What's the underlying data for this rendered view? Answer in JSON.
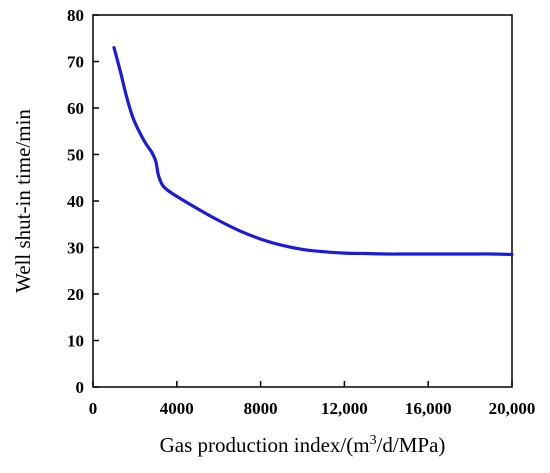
{
  "chart_data": {
    "type": "line",
    "xlabel": "Gas production index/(m",
    "xlabel_sup": "3",
    "xlabel_tail": "/d/MPa)",
    "ylabel": "Well shut-in time/min",
    "xlim": [
      0,
      20000
    ],
    "ylim": [
      0,
      80
    ],
    "x_ticks": [
      0,
      4000,
      8000,
      12000,
      16000,
      20000
    ],
    "x_tick_labels": [
      "0",
      "4000",
      "8000",
      "12,000",
      "16,000",
      "20,000"
    ],
    "y_ticks": [
      0,
      10,
      20,
      30,
      40,
      50,
      60,
      70,
      80
    ],
    "y_tick_labels": [
      "0",
      "10",
      "20",
      "30",
      "40",
      "50",
      "60",
      "70",
      "80"
    ],
    "grid": false,
    "series": [
      {
        "color": "#1a1adb",
        "x": [
          1000,
          1300,
          1600,
          1900,
          2200,
          2500,
          2800,
          3000,
          3100,
          3200,
          3350,
          3600,
          4000,
          5000,
          6000,
          7000,
          8000,
          9000,
          10000,
          11000,
          12000,
          13000,
          14000,
          15000,
          16000,
          17000,
          18000,
          19000,
          20000
        ],
        "y": [
          73,
          68,
          62.5,
          58,
          55,
          52.5,
          50.5,
          48.5,
          46,
          44.5,
          43.2,
          42.2,
          41,
          38.3,
          35.8,
          33.6,
          31.8,
          30.5,
          29.6,
          29.1,
          28.8,
          28.7,
          28.6,
          28.6,
          28.6,
          28.6,
          28.6,
          28.6,
          28.5
        ]
      }
    ]
  }
}
